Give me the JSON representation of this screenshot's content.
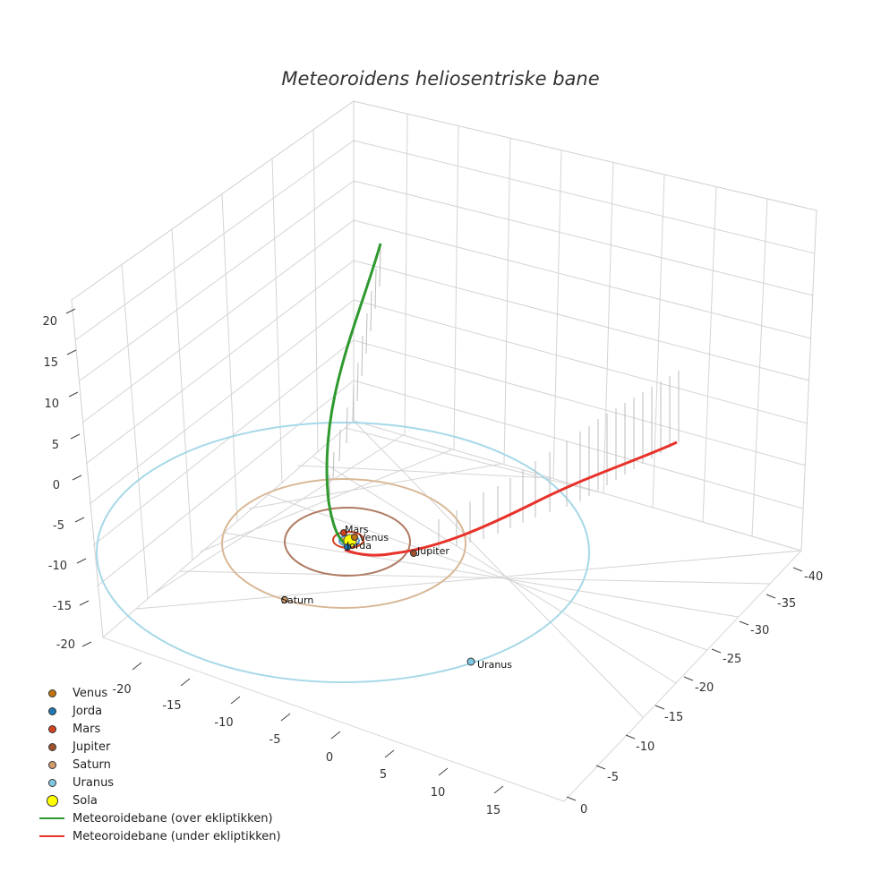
{
  "chart_data": {
    "type": "scatter",
    "title": "Meteoroidens heliosentriske bane",
    "x_ticks": [
      "-20",
      "-15",
      "-10",
      "-5",
      "0",
      "5",
      "10",
      "15"
    ],
    "y_ticks": [
      "-40",
      "-35",
      "-30",
      "-25",
      "-20",
      "-15",
      "-10",
      "-5",
      "0"
    ],
    "z_ticks": [
      "20",
      "15",
      "10",
      "5",
      "0",
      "-5",
      "-10",
      "-15",
      "-20"
    ],
    "planets": [
      {
        "name": "Venus",
        "color": "#c2730f",
        "orbit_color": "#e0952e",
        "radius_au": 0.72
      },
      {
        "name": "Jorda",
        "color": "#1f77b4",
        "orbit_color": "#5b9bd5",
        "radius_au": 1.0
      },
      {
        "name": "Mars",
        "color": "#d2421e",
        "orbit_color": "#d2421e",
        "radius_au": 1.52
      },
      {
        "name": "Jupiter",
        "color": "#a0522d",
        "orbit_color": "#b07a62",
        "radius_au": 5.2
      },
      {
        "name": "Saturn",
        "color": "#d29b6c",
        "orbit_color": "#d9b896",
        "radius_au": 9.5
      },
      {
        "name": "Uranus",
        "color": "#7ec8e3",
        "orbit_color": "#a6d8e8",
        "radius_au": 19.2
      }
    ],
    "sun": {
      "name": "Sola",
      "color": "#ffff00"
    },
    "series": [
      {
        "name": "Meteoroidebane (over ekliptikken)",
        "color": "#2e9a2e"
      },
      {
        "name": "Meteoroidebane (under ekliptikken)",
        "color": "#e8322a"
      }
    ]
  }
}
